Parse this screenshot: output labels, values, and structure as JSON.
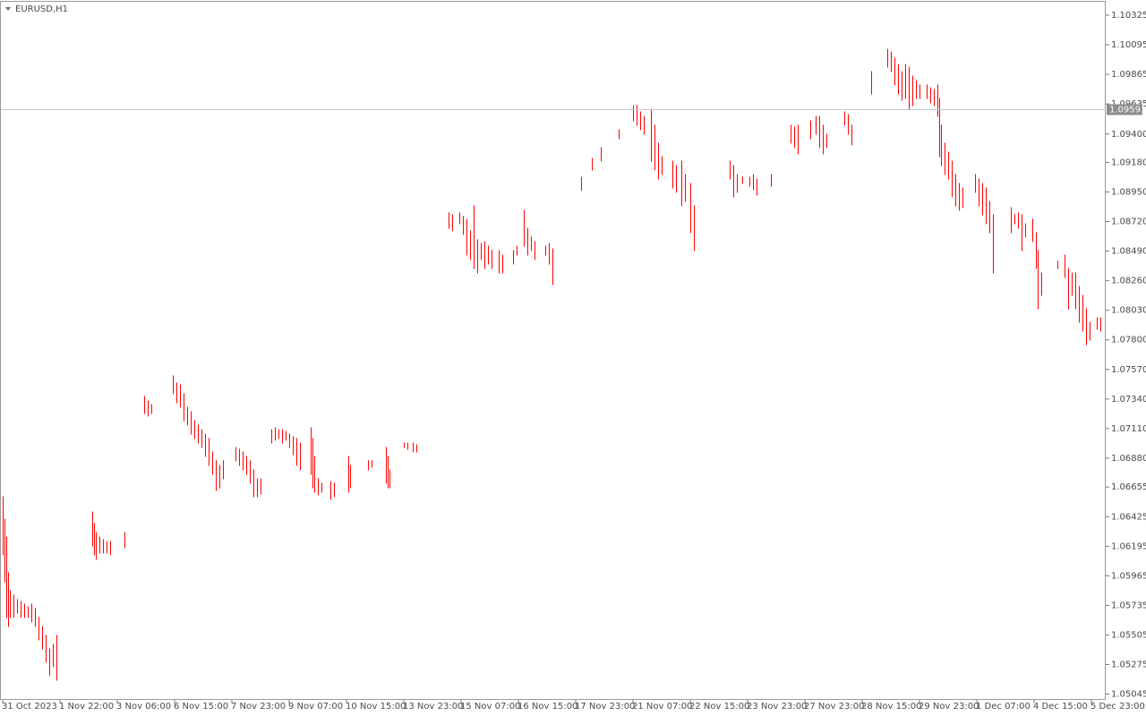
{
  "chart_data": {
    "type": "ohlc",
    "title": "EURUSD,H1",
    "color": "#ff0000",
    "grid": false,
    "current_price": 1.09591,
    "xlim": [
      -1,
      616
    ],
    "ylim": [
      1.05,
      1.10429
    ],
    "xticks": [
      {
        "value": 0,
        "label": "31 Oct 2023"
      },
      {
        "value": 32,
        "label": "1 Nov 22:00"
      },
      {
        "value": 64,
        "label": "3 Nov 06:00"
      },
      {
        "value": 96,
        "label": "6 Nov 15:00"
      },
      {
        "value": 128,
        "label": "7 Nov 23:00"
      },
      {
        "value": 160,
        "label": "9 Nov 07:00"
      },
      {
        "value": 192,
        "label": "10 Nov 15:00"
      },
      {
        "value": 224,
        "label": "13 Nov 23:00"
      },
      {
        "value": 256,
        "label": "15 Nov 07:00"
      },
      {
        "value": 288,
        "label": "16 Nov 15:00"
      },
      {
        "value": 320,
        "label": "17 Nov 23:00"
      },
      {
        "value": 352,
        "label": "21 Nov 07:00"
      },
      {
        "value": 384,
        "label": "22 Nov 15:00"
      },
      {
        "value": 416,
        "label": "23 Nov 23:00"
      },
      {
        "value": 448,
        "label": "27 Nov 23:00"
      },
      {
        "value": 480,
        "label": "28 Nov 15:00"
      },
      {
        "value": 512,
        "label": "29 Nov 23:00"
      },
      {
        "value": 544,
        "label": "1 Dec 07:00"
      },
      {
        "value": 576,
        "label": "4 Dec 15:00"
      },
      {
        "value": 608,
        "label": "5 Dec 23:00"
      }
    ],
    "yticks": [
      1.10325,
      1.10095,
      1.09865,
      1.09635,
      {
        "value": 1.094,
        "label": "1.09400"
      },
      {
        "value": 1.0918,
        "label": "1.09180"
      },
      {
        "value": 1.0895,
        "label": "1.08950"
      },
      {
        "value": 1.0872,
        "label": "1.08720"
      },
      {
        "value": 1.0849,
        "label": "1.08490"
      },
      {
        "value": 1.0826,
        "label": "1.08260"
      },
      {
        "value": 1.0803,
        "label": "1.08030"
      },
      {
        "value": 1.078,
        "label": "1.07800"
      },
      {
        "value": 1.0757,
        "label": "1.07570"
      },
      {
        "value": 1.0734,
        "label": "1.07340"
      },
      {
        "value": 1.0711,
        "label": "1.07110"
      },
      {
        "value": 1.0688,
        "label": "1.06880"
      },
      1.06655,
      1.06425,
      1.06195,
      1.05965,
      1.05735,
      1.05505,
      1.05275,
      1.05045
    ],
    "x": [
      0,
      1,
      2,
      3,
      4,
      6,
      8,
      10,
      12,
      14,
      16,
      18,
      20,
      22,
      24,
      26,
      28,
      30,
      50,
      51,
      52,
      54,
      56,
      58,
      60,
      68,
      79,
      81,
      83,
      95,
      97,
      99,
      101,
      103,
      105,
      107,
      109,
      111,
      113,
      115,
      117,
      119,
      121,
      123,
      130,
      132,
      134,
      136,
      138,
      140,
      142,
      144,
      150,
      152,
      154,
      156,
      158,
      160,
      162,
      164,
      166,
      172,
      173,
      174,
      176,
      178,
      183,
      185,
      193,
      194,
      204,
      206,
      214,
      215,
      216,
      224,
      226,
      229,
      231,
      249,
      251,
      255,
      257,
      259,
      261,
      263,
      265,
      267,
      269,
      271,
      273,
      277,
      279,
      285,
      287,
      291,
      293,
      295,
      297,
      303,
      305,
      307,
      323,
      329,
      334,
      344,
      352,
      354,
      356,
      358,
      362,
      364,
      366,
      368,
      374,
      376,
      379,
      381,
      384,
      386,
      406,
      408,
      410,
      413,
      417,
      419,
      421,
      429,
      440,
      442,
      444,
      451,
      454,
      456,
      458,
      460,
      470,
      472,
      474,
      485,
      494,
      496,
      498,
      500,
      502,
      504,
      506,
      508,
      510,
      512,
      516,
      518,
      520,
      522,
      523,
      524,
      526,
      528,
      530,
      532,
      534,
      536,
      543,
      545,
      547,
      549,
      551,
      553,
      563,
      565,
      567,
      569,
      571,
      575,
      577,
      578,
      580,
      589,
      593,
      595,
      597,
      599,
      601,
      603,
      605,
      607,
      611,
      613
    ],
    "high": [
      1.0658,
      1.06406,
      1.06267,
      1.05989,
      1.05849,
      1.05815,
      1.0578,
      1.05766,
      1.05745,
      1.05724,
      1.05745,
      1.0571,
      1.05641,
      1.05571,
      1.05501,
      1.05397,
      1.05432,
      1.05501,
      1.06462,
      1.06371,
      1.06302,
      1.06267,
      1.06246,
      1.06232,
      1.06232,
      1.06302,
      1.0736,
      1.07325,
      1.07297,
      1.0752,
      1.07464,
      1.0745,
      1.07381,
      1.07276,
      1.07241,
      1.07172,
      1.07137,
      1.07102,
      1.07067,
      1.07033,
      1.06928,
      1.06859,
      1.06824,
      1.06859,
      1.06963,
      1.06949,
      1.06928,
      1.06893,
      1.06859,
      1.06789,
      1.06719,
      1.06719,
      1.07102,
      1.07116,
      1.07102,
      1.07102,
      1.07088,
      1.07067,
      1.07047,
      1.07033,
      1.06998,
      1.07116,
      1.07033,
      1.06893,
      1.06719,
      1.06685,
      1.06699,
      1.06685,
      1.06893,
      1.06824,
      1.06859,
      1.06859,
      1.06963,
      1.06893,
      1.06789,
      1.06998,
      1.06998,
      1.06998,
      1.06984,
      1.08787,
      1.08773,
      1.08787,
      1.08759,
      1.08738,
      1.08647,
      1.08842,
      1.08578,
      1.0855,
      1.08564,
      1.08529,
      1.08494,
      1.08494,
      1.08459,
      1.08494,
      1.08529,
      1.08807,
      1.08668,
      1.08599,
      1.08564,
      1.08529,
      1.0855,
      1.08508,
      1.09065,
      1.09211,
      1.09295,
      1.09434,
      1.09622,
      1.09622,
      1.09573,
      1.09538,
      1.09594,
      1.09469,
      1.09329,
      1.09225,
      1.0919,
      1.09155,
      1.0919,
      1.09086,
      1.09016,
      1.08842,
      1.0919,
      1.09155,
      1.09086,
      1.09065,
      1.09065,
      1.09086,
      1.09051,
      1.09086,
      1.09469,
      1.09455,
      1.09469,
      1.09503,
      1.09538,
      1.09538,
      1.09469,
      1.09399,
      1.09573,
      1.09552,
      1.09469,
      1.09886,
      1.1006,
      1.10039,
      1.09991,
      1.09942,
      1.09886,
      1.09942,
      1.09921,
      1.09851,
      1.09817,
      1.09782,
      1.09782,
      1.09761,
      1.09747,
      1.09782,
      1.09677,
      1.09469,
      1.09329,
      1.0926,
      1.0919,
      1.09086,
      1.09016,
      1.08981,
      1.09086,
      1.09051,
      1.09016,
      1.08981,
      1.08877,
      1.08773,
      1.08828,
      1.08773,
      1.08787,
      1.08773,
      1.08703,
      1.08738,
      1.08633,
      1.08494,
      1.0832,
      1.08411,
      1.08459,
      1.08355,
      1.0832,
      1.0832,
      1.08216,
      1.08146,
      1.08042,
      1.07937,
      1.07972,
      1.07972
    ],
    "low": [
      1.06128,
      1.05919,
      1.05641,
      1.05571,
      1.05641,
      1.05641,
      1.05675,
      1.05641,
      1.05641,
      1.05641,
      1.05606,
      1.05571,
      1.05467,
      1.05397,
      1.05293,
      1.05188,
      1.05258,
      1.05153,
      1.06197,
      1.06128,
      1.06093,
      1.06142,
      1.06142,
      1.06142,
      1.06128,
      1.06183,
      1.07227,
      1.07207,
      1.07227,
      1.07381,
      1.07311,
      1.07276,
      1.07172,
      1.07137,
      1.07067,
      1.07033,
      1.06998,
      1.06963,
      1.06893,
      1.06824,
      1.06754,
      1.06629,
      1.0665,
      1.06719,
      1.06859,
      1.06824,
      1.06789,
      1.06754,
      1.06685,
      1.0658,
      1.0658,
      1.06601,
      1.06998,
      1.07019,
      1.07033,
      1.06998,
      1.07019,
      1.06963,
      1.06907,
      1.06824,
      1.06789,
      1.06754,
      1.0665,
      1.06615,
      1.06594,
      1.06615,
      1.06559,
      1.0658,
      1.06615,
      1.0665,
      1.06789,
      1.0681,
      1.06685,
      1.0665,
      1.0665,
      1.06963,
      1.06949,
      1.06928,
      1.06928,
      1.08668,
      1.08647,
      1.08703,
      1.08619,
      1.08459,
      1.08425,
      1.08355,
      1.0832,
      1.08425,
      1.08355,
      1.0839,
      1.08355,
      1.0832,
      1.0832,
      1.0839,
      1.08459,
      1.08529,
      1.08459,
      1.08494,
      1.08425,
      1.08459,
      1.0839,
      1.0823,
      1.08961,
      1.09121,
      1.0919,
      1.09364,
      1.09503,
      1.09469,
      1.09434,
      1.09399,
      1.0919,
      1.09121,
      1.09051,
      1.09086,
      1.08981,
      1.08947,
      1.08842,
      1.08877,
      1.08633,
      1.08494,
      1.09051,
      1.08912,
      1.08947,
      1.09016,
      1.08995,
      1.08967,
      1.08926,
      1.08995,
      1.09329,
      1.09295,
      1.09246,
      1.09364,
      1.09399,
      1.09295,
      1.09246,
      1.09295,
      1.09469,
      1.09399,
      1.09315,
      1.09712,
      1.09921,
      1.09886,
      1.09782,
      1.09712,
      1.09663,
      1.09677,
      1.09594,
      1.09622,
      1.09677,
      1.09677,
      1.09677,
      1.09643,
      1.09622,
      1.09538,
      1.09225,
      1.09155,
      1.09086,
      1.09051,
      1.08912,
      1.08842,
      1.08807,
      1.08828,
      1.08947,
      1.08842,
      1.08773,
      1.08703,
      1.08633,
      1.0832,
      1.08633,
      1.08703,
      1.08668,
      1.08494,
      1.08599,
      1.08564,
      1.08355,
      1.08042,
      1.08146,
      1.08355,
      1.08285,
      1.08042,
      1.08146,
      1.08042,
      1.07937,
      1.07868,
      1.07763,
      1.07798,
      1.07882,
      1.07868
    ]
  }
}
